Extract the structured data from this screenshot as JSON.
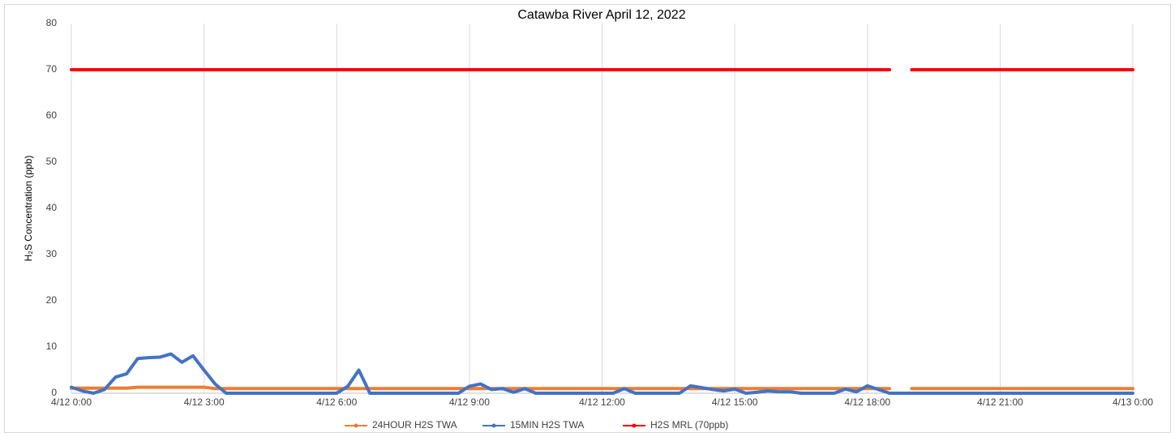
{
  "chart_data": {
    "type": "line",
    "title": "Catawba River April 12, 2022",
    "y_label": "H₂S Concentration (ppb)",
    "x": [
      0,
      0.25,
      0.5,
      0.75,
      1,
      1.25,
      1.5,
      1.75,
      2,
      2.25,
      2.5,
      2.75,
      3,
      3.25,
      3.5,
      3.75,
      4,
      4.25,
      4.5,
      4.75,
      5,
      5.25,
      5.5,
      5.75,
      6,
      6.25,
      6.5,
      6.75,
      7,
      7.25,
      7.5,
      7.75,
      8,
      8.25,
      8.5,
      8.75,
      9,
      9.25,
      9.5,
      9.75,
      10,
      10.25,
      10.5,
      10.75,
      11,
      11.25,
      11.5,
      11.75,
      12,
      12.25,
      12.5,
      12.75,
      13,
      13.25,
      13.5,
      13.75,
      14,
      14.25,
      14.5,
      14.75,
      15,
      15.25,
      15.5,
      15.75,
      16,
      16.25,
      16.5,
      16.75,
      17,
      17.25,
      17.5,
      17.75,
      18,
      18.25,
      18.5,
      18.75,
      19,
      19.25,
      19.5,
      19.75,
      20,
      20.25,
      20.5,
      20.75,
      21,
      21.25,
      21.5,
      21.75,
      22,
      22.25,
      22.5,
      22.75,
      23,
      23.25,
      23.5,
      23.75,
      24
    ],
    "series": [
      {
        "name": "24HOUR H2S TWA",
        "color": "#ED7D31",
        "values": [
          1.1,
          1.1,
          1.1,
          1.1,
          1.1,
          1.1,
          1.3,
          1.3,
          1.3,
          1.3,
          1.3,
          1.3,
          1.3,
          1,
          1,
          1,
          1,
          1,
          1,
          1,
          1,
          1,
          1,
          1,
          1,
          1,
          1,
          1,
          1,
          1,
          1,
          1,
          1,
          1,
          1,
          1,
          1,
          1,
          1,
          1,
          1,
          1,
          1,
          1,
          1,
          1,
          1,
          1,
          1,
          1,
          1,
          1,
          1,
          1,
          1,
          1,
          1,
          1,
          1,
          1,
          1,
          1,
          1,
          1,
          1,
          1,
          1,
          1,
          1,
          1,
          1,
          1,
          1,
          1,
          1,
          null,
          1,
          1,
          1,
          1,
          1,
          1,
          1,
          1,
          1,
          1,
          1,
          1,
          1,
          1,
          1,
          1,
          1,
          1,
          1,
          1,
          1
        ]
      },
      {
        "name": "15MIN H2S TWA",
        "color": "#4472C4",
        "values": [
          1.3,
          0.5,
          0,
          0.8,
          3.5,
          4.2,
          7.5,
          7.7,
          7.8,
          8.5,
          6.7,
          8.1,
          5.0,
          2.0,
          0,
          0,
          0,
          0,
          0,
          0,
          0,
          0,
          0,
          0,
          0,
          1.5,
          5.0,
          0,
          0,
          0,
          0,
          0,
          0,
          0,
          0,
          0,
          1.5,
          2.0,
          0.8,
          1.0,
          0.2,
          1.0,
          0,
          0,
          0,
          0,
          0,
          0,
          0,
          0,
          1.0,
          0,
          0,
          0,
          0,
          0,
          1.6,
          1.2,
          0.8,
          0.5,
          0.9,
          0,
          0.2,
          0.5,
          0.3,
          0.3,
          0,
          0,
          0,
          0,
          0.9,
          0.3,
          1.6,
          0.8,
          0,
          0,
          0,
          0,
          0,
          0,
          0,
          0,
          0,
          0,
          0,
          0,
          0,
          0,
          0,
          0,
          0,
          0,
          0,
          0,
          0,
          0,
          0
        ]
      },
      {
        "name": "H2S MRL (70ppb)",
        "color": "#FF0000",
        "values": [
          70,
          70,
          70,
          70,
          70,
          70,
          70,
          70,
          70,
          70,
          70,
          70,
          70,
          70,
          70,
          70,
          70,
          70,
          70,
          70,
          70,
          70,
          70,
          70,
          70,
          70,
          70,
          70,
          70,
          70,
          70,
          70,
          70,
          70,
          70,
          70,
          70,
          70,
          70,
          70,
          70,
          70,
          70,
          70,
          70,
          70,
          70,
          70,
          70,
          70,
          70,
          70,
          70,
          70,
          70,
          70,
          70,
          70,
          70,
          70,
          70,
          70,
          70,
          70,
          70,
          70,
          70,
          70,
          70,
          70,
          70,
          70,
          70,
          70,
          70,
          null,
          70,
          70,
          70,
          70,
          70,
          70,
          70,
          70,
          70,
          70,
          70,
          70,
          70,
          70,
          70,
          70,
          70,
          70,
          70,
          70,
          70
        ]
      }
    ],
    "xlim": [
      0,
      24
    ],
    "xticks": [
      {
        "value": 0,
        "label": "4/12 0:00"
      },
      {
        "value": 3,
        "label": "4/12 3:00"
      },
      {
        "value": 6,
        "label": "4/12 6:00"
      },
      {
        "value": 9,
        "label": "4/12 9:00"
      },
      {
        "value": 12,
        "label": "4/12 12:00"
      },
      {
        "value": 15,
        "label": "4/12 15:00"
      },
      {
        "value": 18,
        "label": "4/12 18:00"
      },
      {
        "value": 21,
        "label": "4/12 21:00"
      },
      {
        "value": 24,
        "label": "4/13 0:00"
      }
    ],
    "ylim": [
      0,
      80
    ],
    "yticks": [
      0,
      10,
      20,
      30,
      40,
      50,
      60,
      70,
      80
    ],
    "grid": true,
    "legend": "bottom"
  }
}
